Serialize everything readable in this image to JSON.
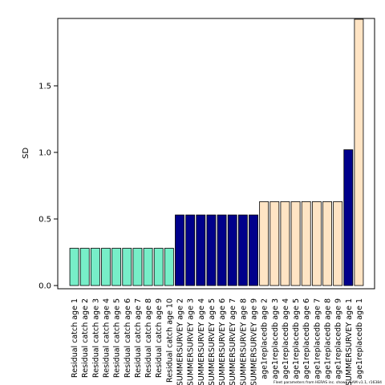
{
  "chart_data": {
    "type": "bar",
    "ylabel": "SD",
    "xlabel": "",
    "ylim": [
      0,
      2.0
    ],
    "yticks": [
      0.0,
      0.5,
      1.0,
      1.5
    ],
    "ytick_labels": [
      "0.0",
      "0.5",
      "1.0",
      "1.5"
    ],
    "grid": false,
    "footnote": "Fleet parameters from HERAS inc. shows, SAM v1.1, r16384",
    "categories": [
      "Residual catch age 1",
      "Residual catch age 2",
      "Residual catch age 3",
      "Residual catch age 4",
      "Residual catch age 5",
      "Residual catch age 6",
      "Residual catch age 7",
      "Residual catch age 8",
      "Residual catch age 9",
      "Residual catch age 10",
      "SUMMERSURVEY age 2",
      "SUMMERSURVEY age 3",
      "SUMMERSURVEY age 4",
      "SUMMERSURVEY age 5",
      "SUMMERSURVEY age 6",
      "SUMMERSURVEY age 7",
      "SUMMERSURVEY age 8",
      "SUMMERSURVEY age 9",
      "age1replacedb age 2",
      "age1replacedb age 3",
      "age1replacedb age 4",
      "age1replacedb age 5",
      "age1replacedb age 6",
      "age1replacedb age 7",
      "age1replacedb age 8",
      "age1replacedb age 9",
      "SUMMERSURVEY age 1",
      "age1replacedb age 1"
    ],
    "values": [
      0.28,
      0.28,
      0.28,
      0.28,
      0.28,
      0.28,
      0.28,
      0.28,
      0.28,
      0.28,
      0.53,
      0.53,
      0.53,
      0.53,
      0.53,
      0.53,
      0.53,
      0.53,
      0.63,
      0.63,
      0.63,
      0.63,
      0.63,
      0.63,
      0.63,
      0.63,
      1.02,
      2.0
    ],
    "bar_colors": [
      "#77eec8",
      "#77eec8",
      "#77eec8",
      "#77eec8",
      "#77eec8",
      "#77eec8",
      "#77eec8",
      "#77eec8",
      "#77eec8",
      "#77eec8",
      "#00008b",
      "#00008b",
      "#00008b",
      "#00008b",
      "#00008b",
      "#00008b",
      "#00008b",
      "#00008b",
      "#ffe4c4",
      "#ffe4c4",
      "#ffe4c4",
      "#ffe4c4",
      "#ffe4c4",
      "#ffe4c4",
      "#ffe4c4",
      "#ffe4c4",
      "#00008b",
      "#ffe4c4"
    ],
    "bar_stroke": "#000000"
  }
}
